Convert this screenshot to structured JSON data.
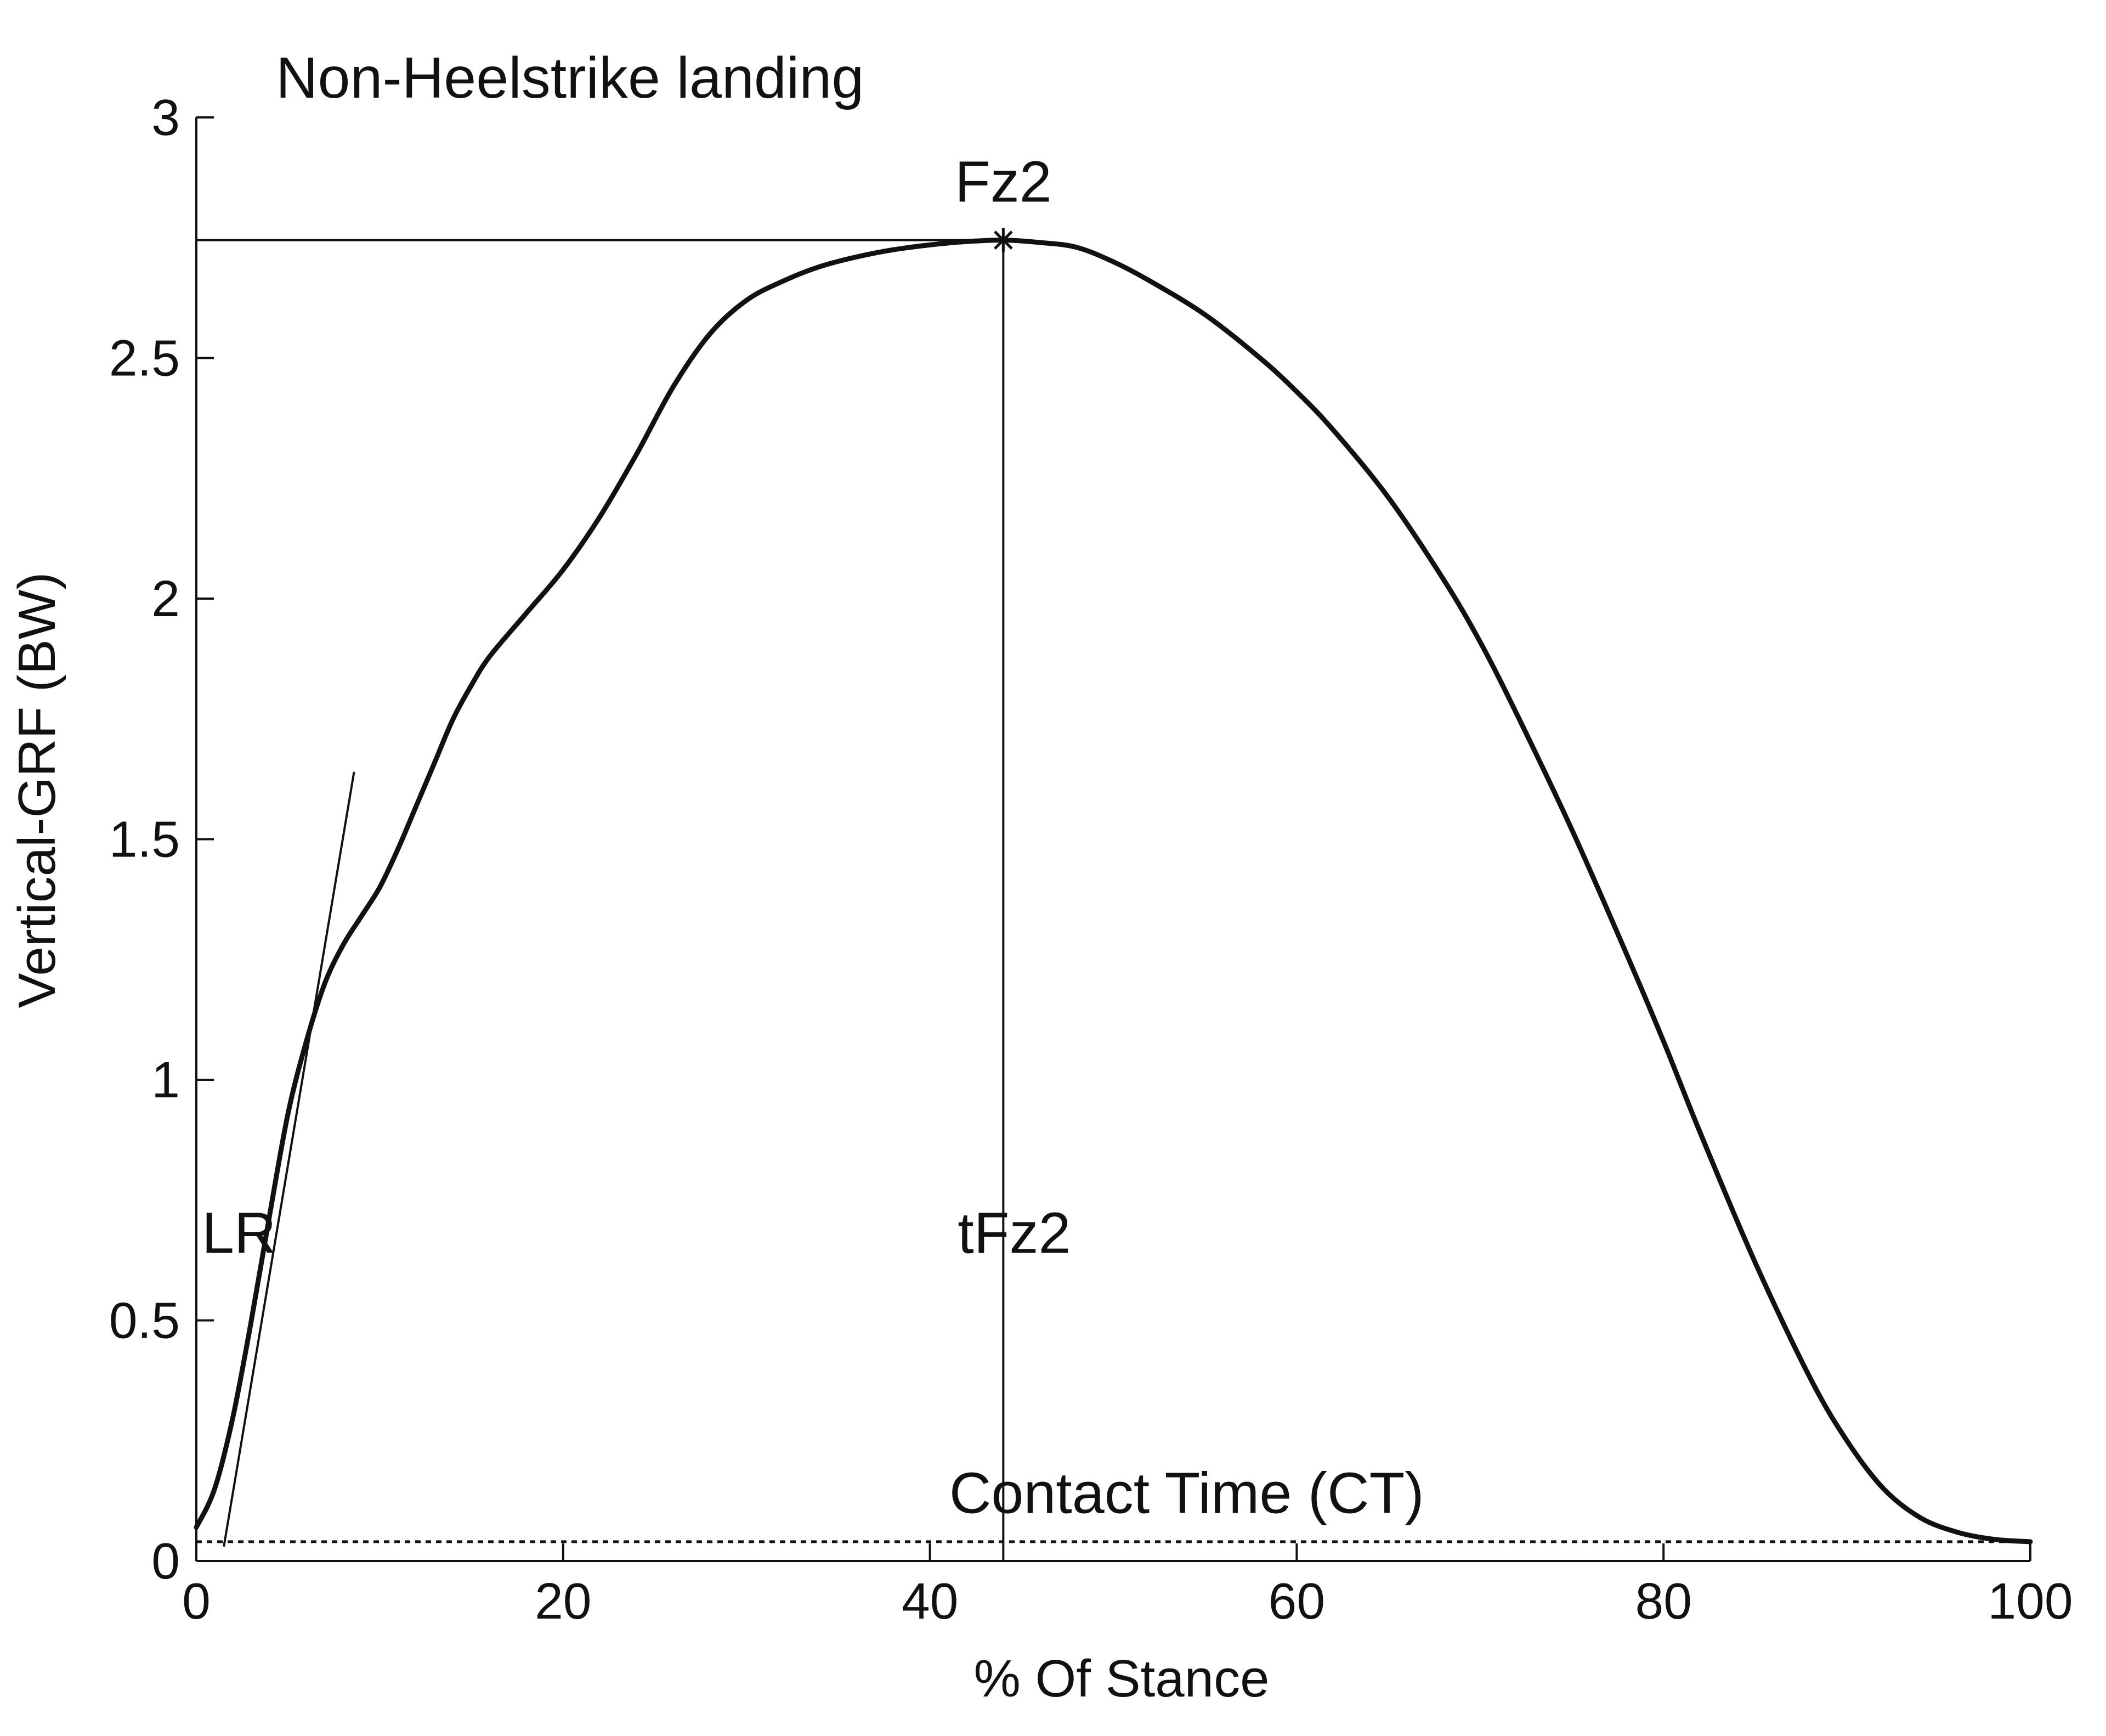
{
  "chart_data": {
    "type": "line",
    "title": "Non-Heelstrike landing",
    "xlabel": "% Of Stance",
    "ylabel": "Vertical-GRF (BW)",
    "xlim": [
      0,
      100
    ],
    "ylim": [
      0,
      3
    ],
    "x_ticks": [
      0,
      20,
      40,
      60,
      80,
      100
    ],
    "x_tick_labels": [
      "0",
      "20",
      "40",
      "60",
      "80",
      "100"
    ],
    "y_ticks": [
      0,
      0.5,
      1,
      1.5,
      2,
      2.5,
      3
    ],
    "y_tick_labels": [
      "0",
      "0.5",
      "1",
      "1.5",
      "2",
      "2.5",
      "3"
    ],
    "grid": false,
    "legend": "none",
    "series": [
      {
        "x": [
          0,
          1,
          2,
          3,
          4,
          5,
          6,
          7,
          8,
          9,
          10,
          11,
          12,
          13,
          14,
          15,
          16,
          18,
          20,
          22,
          24,
          26,
          28,
          30,
          32,
          34,
          36,
          38,
          40,
          42,
          44,
          46,
          48,
          50,
          52,
          55,
          58,
          60,
          62,
          65,
          68,
          70,
          72,
          75,
          78,
          80,
          82,
          85,
          88,
          90,
          92,
          94,
          96,
          98,
          100
        ],
        "y": [
          0.07,
          0.15,
          0.3,
          0.5,
          0.72,
          0.93,
          1.08,
          1.2,
          1.28,
          1.34,
          1.4,
          1.48,
          1.57,
          1.66,
          1.75,
          1.82,
          1.88,
          1.97,
          2.06,
          2.17,
          2.3,
          2.44,
          2.55,
          2.62,
          2.66,
          2.69,
          2.71,
          2.725,
          2.735,
          2.742,
          2.745,
          2.74,
          2.73,
          2.7,
          2.66,
          2.59,
          2.5,
          2.43,
          2.35,
          2.21,
          2.04,
          1.91,
          1.76,
          1.52,
          1.26,
          1.08,
          0.89,
          0.62,
          0.38,
          0.25,
          0.15,
          0.09,
          0.06,
          0.045,
          0.04
        ]
      }
    ],
    "reference_lines": {
      "peak_horizontal_y": 2.745,
      "peak_vertical_x": 44,
      "contact_threshold_y": 0.04,
      "loading_rate_tangent": [
        [
          1.5,
          0.03
        ],
        [
          8.6,
          1.64
        ]
      ]
    },
    "annotations": {
      "peak_label": "Fz2",
      "peak_time_label": "tFz2",
      "loading_rate_label": "LR",
      "contact_time_label": "Contact Time (CT)"
    }
  }
}
